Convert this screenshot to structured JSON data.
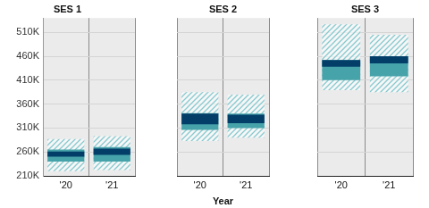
{
  "chart_data": [
    {
      "type": "bar",
      "title": "SES 1",
      "categories": [
        "'20",
        "'21"
      ],
      "series": [
        {
          "color": "#86c9cf",
          "values": [
            [
              220000,
              287000
            ],
            [
              222000,
              293000
            ]
          ]
        },
        {
          "color": "#46a3aa",
          "values": [
            [
              240000,
              265000
            ],
            [
              240000,
              270000
            ]
          ]
        },
        {
          "color": "#033e69",
          "values": [
            [
              250000,
              261000
            ],
            [
              254000,
              267000
            ]
          ]
        }
      ],
      "ylim": [
        210000,
        540000
      ],
      "yticks": [
        {
          "value": 210000,
          "label": "210K"
        },
        {
          "value": 260000,
          "label": "260K"
        },
        {
          "value": 310000,
          "label": "310K"
        },
        {
          "value": 360000,
          "label": "360K"
        },
        {
          "value": 410000,
          "label": "410K"
        },
        {
          "value": 460000,
          "label": "460K"
        },
        {
          "value": 510000,
          "label": "510K"
        }
      ],
      "grid": true
    },
    {
      "type": "bar",
      "title": "SES 2",
      "categories": [
        "'20",
        "'21"
      ],
      "x_label": "Year",
      "series": [
        {
          "color": "#86c9cf",
          "values": [
            [
              283000,
              385000
            ],
            [
              290000,
              380000
            ]
          ]
        },
        {
          "color": "#46a3aa",
          "values": [
            [
              306000,
              341000
            ],
            [
              310000,
              340000
            ]
          ]
        },
        {
          "color": "#033e69",
          "values": [
            [
              318000,
              340000
            ],
            [
              320000,
              338000
            ]
          ]
        }
      ],
      "ylim": [
        210000,
        540000
      ],
      "yticks": [
        {
          "value": 210000,
          "label": "210K"
        },
        {
          "value": 260000,
          "label": "260K"
        },
        {
          "value": 310000,
          "label": "310K"
        },
        {
          "value": 360000,
          "label": "360K"
        },
        {
          "value": 410000,
          "label": "410K"
        },
        {
          "value": 460000,
          "label": "460K"
        },
        {
          "value": 510000,
          "label": "510K"
        }
      ],
      "grid": true,
      "tick_labels": "x"
    },
    {
      "type": "bar",
      "title": "SES 3",
      "categories": [
        "'20",
        "'21"
      ],
      "series": [
        {
          "color": "#86c9cf",
          "values": [
            [
              389000,
              527000
            ],
            [
              385000,
              505000
            ]
          ]
        },
        {
          "color": "#46a3aa",
          "values": [
            [
              410000,
              452000
            ],
            [
              418000,
              460000
            ]
          ]
        },
        {
          "color": "#033e69",
          "values": [
            [
              438000,
              452000
            ],
            [
              445000,
              460000
            ]
          ]
        }
      ],
      "ylim": [
        210000,
        540000
      ],
      "yticks": [
        {
          "value": 210000,
          "label": "210K"
        },
        {
          "value": 260000,
          "label": "260K"
        },
        {
          "value": 310000,
          "label": "310K"
        },
        {
          "value": 360000,
          "label": "360K"
        },
        {
          "value": 410000,
          "label": "410K"
        },
        {
          "value": 460000,
          "label": "460K"
        },
        {
          "value": 510000,
          "label": "510K"
        }
      ],
      "grid": true,
      "tick_labels": "x"
    }
  ]
}
